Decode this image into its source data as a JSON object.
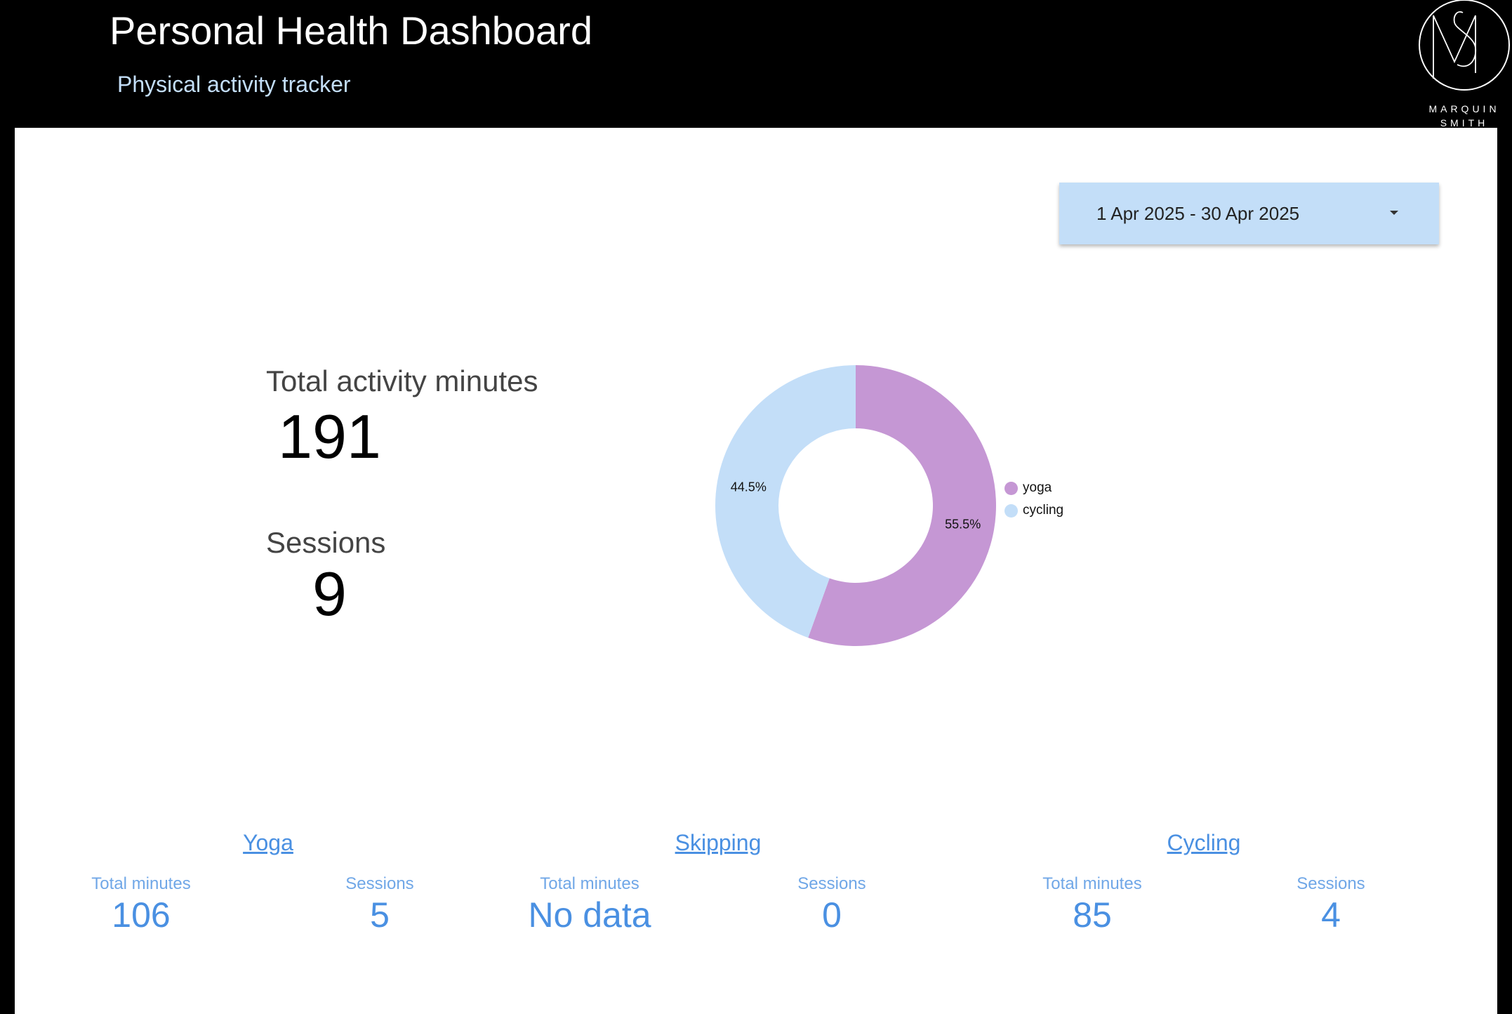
{
  "header": {
    "title": "Personal Health Dashboard",
    "subtitle": "Physical activity tracker",
    "logo": {
      "monogram": "MS",
      "line1": "MARQUIN",
      "line2": "SMITH"
    }
  },
  "date_range": {
    "value": "1 Apr 2025 - 30 Apr 2025",
    "icon": "dropdown-caret-icon"
  },
  "summary": {
    "total_label": "Total activity minutes",
    "total_value": "191",
    "sessions_label": "Sessions",
    "sessions_value": "9"
  },
  "chart_data": {
    "type": "pie",
    "title": "",
    "categories": [
      "yoga",
      "cycling"
    ],
    "values": [
      55.5,
      44.5
    ],
    "labels": [
      "55.5%",
      "44.5%"
    ],
    "colors": [
      "#c597d4",
      "#c3def8"
    ],
    "legend": "right"
  },
  "activities": [
    {
      "name": "Yoga",
      "minutes_label": "Total minutes",
      "minutes": "106",
      "sessions_label": "Sessions",
      "sessions": "5"
    },
    {
      "name": "Skipping",
      "minutes_label": "Total minutes",
      "minutes": "No data",
      "sessions_label": "Sessions",
      "sessions": "0"
    },
    {
      "name": "Cycling",
      "minutes_label": "Total minutes",
      "minutes": "85",
      "sessions_label": "Sessions",
      "sessions": "4"
    }
  ],
  "colors": {
    "background": "#000000",
    "canvas": "#ffffff",
    "accent": "#4a90e2",
    "date_control": "#c3def8",
    "subtitle": "#c3def8"
  }
}
